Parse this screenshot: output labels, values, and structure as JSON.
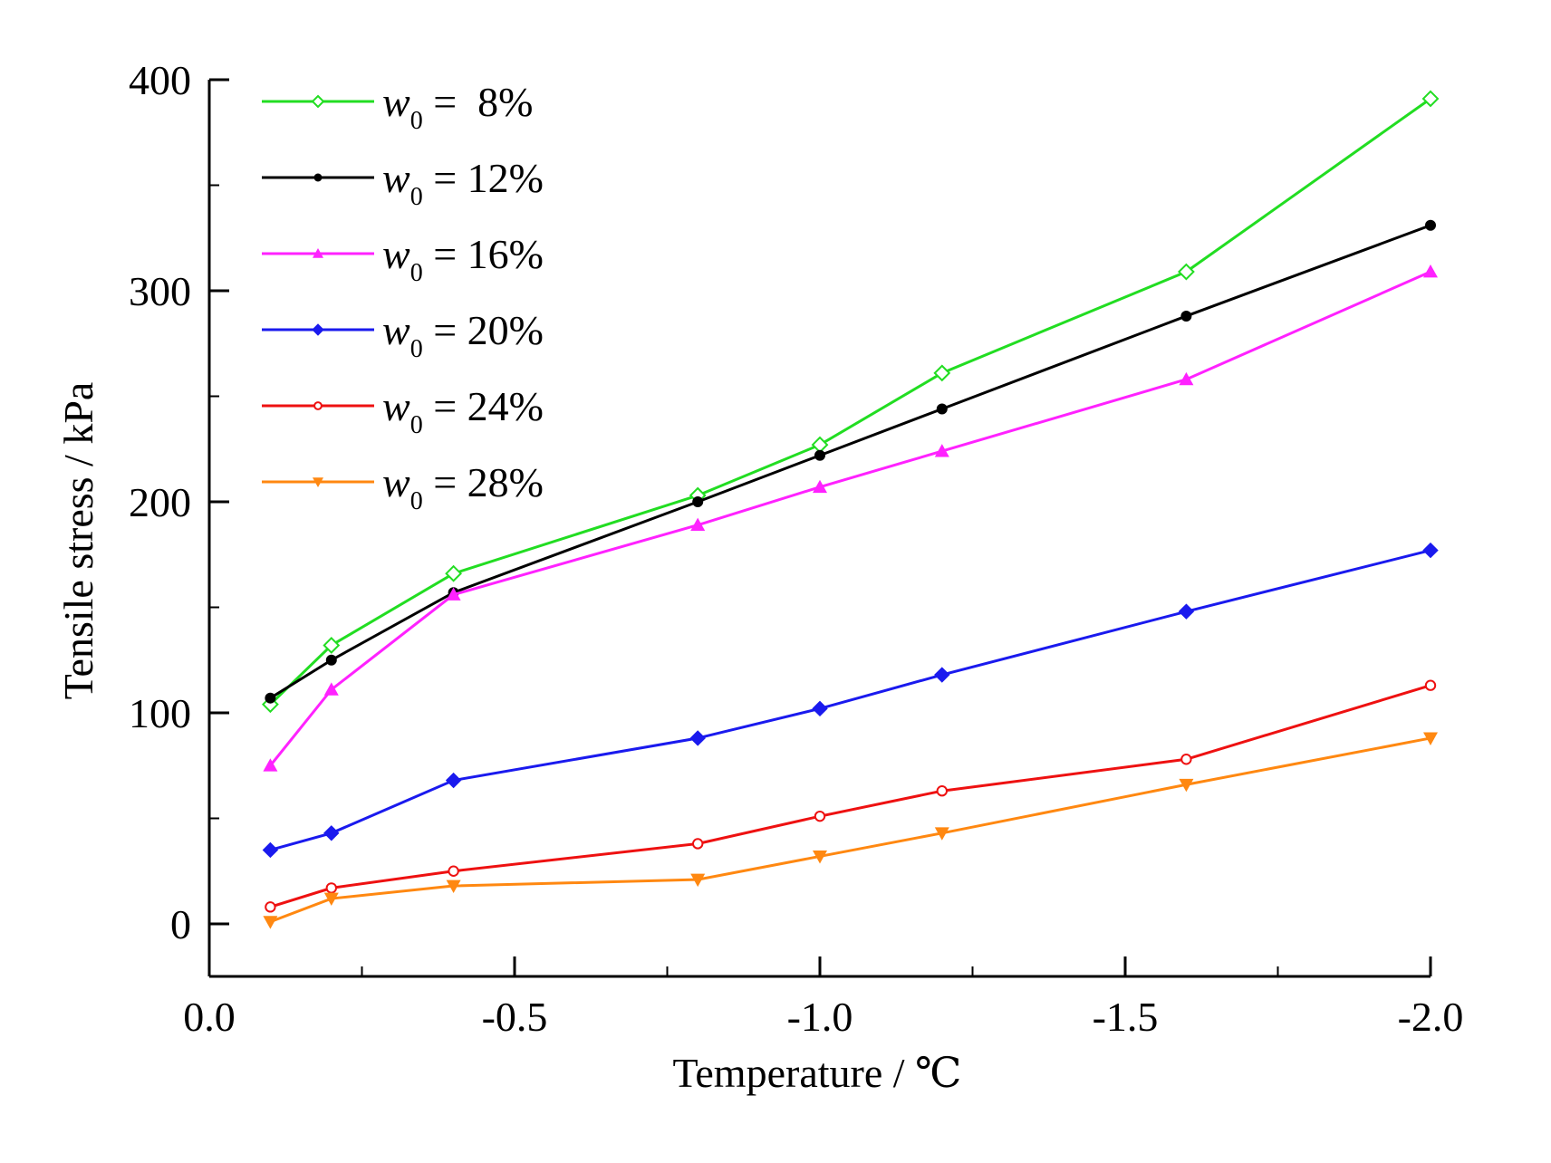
{
  "chart_data": {
    "type": "line",
    "title": "",
    "xlabel": "Temperature / ℃",
    "ylabel": "Tensile stress / kPa",
    "xlim": [
      0.0,
      -2.0
    ],
    "ylim": [
      -25,
      400
    ],
    "x_ticks": [
      0.0,
      -0.5,
      -1.0,
      -1.5,
      -2.0
    ],
    "x_tick_labels": [
      "0.0",
      "-0.5",
      "-1.0",
      "-1.5",
      "-2.0"
    ],
    "y_ticks": [
      0,
      100,
      200,
      300,
      400
    ],
    "y_tick_labels": [
      "0",
      "100",
      "200",
      "300",
      "400"
    ],
    "grid": false,
    "legend_position": "top-left",
    "x": [
      -0.1,
      -0.2,
      -0.4,
      -0.8,
      -1.0,
      -1.2,
      -1.6,
      -2.0
    ],
    "series": [
      {
        "name": "w0 = 8%",
        "legend_var": "w",
        "legend_sub": "0",
        "legend_rest": " =  8%",
        "color": "#22dd22",
        "marker": "open-diamond",
        "values": [
          104,
          132,
          166,
          203,
          227,
          261,
          309,
          391
        ]
      },
      {
        "name": "w0 = 12%",
        "legend_var": "w",
        "legend_sub": "0",
        "legend_rest": " = 12%",
        "color": "#000000",
        "marker": "filled-circle",
        "values": [
          107,
          125,
          157,
          200,
          222,
          244,
          288,
          331
        ]
      },
      {
        "name": "w0 = 16%",
        "legend_var": "w",
        "legend_sub": "0",
        "legend_rest": " = 16%",
        "color": "#ff22ff",
        "marker": "filled-triangle",
        "values": [
          75,
          111,
          156,
          189,
          207,
          224,
          258,
          309
        ]
      },
      {
        "name": "w0 = 20%",
        "legend_var": "w",
        "legend_sub": "0",
        "legend_rest": " = 20%",
        "color": "#1a1aee",
        "marker": "filled-diamond",
        "values": [
          35,
          43,
          68,
          88,
          102,
          118,
          148,
          177
        ]
      },
      {
        "name": "w0 = 24%",
        "legend_var": "w",
        "legend_sub": "0",
        "legend_rest": " = 24%",
        "color": "#ee1111",
        "marker": "open-circle",
        "values": [
          8,
          17,
          25,
          38,
          51,
          63,
          78,
          113
        ]
      },
      {
        "name": "w0 = 28%",
        "legend_var": "w",
        "legend_sub": "0",
        "legend_rest": " = 28%",
        "color": "#ff8811",
        "marker": "filled-down-triangle",
        "values": [
          1,
          12,
          18,
          21,
          32,
          43,
          66,
          88
        ]
      }
    ]
  }
}
